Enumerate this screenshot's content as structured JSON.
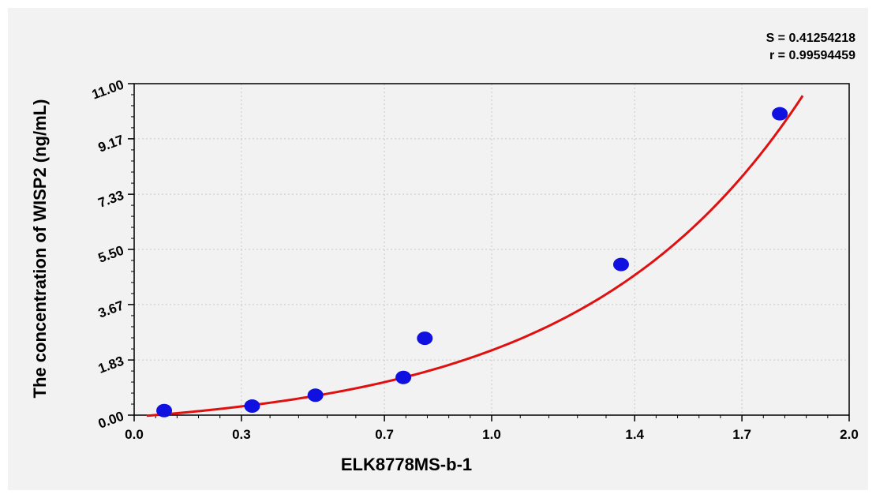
{
  "chart_data": {
    "type": "scatter",
    "title": "",
    "xlabel": "ELK8778MS-b-1",
    "ylabel": "The concentration of WISP2 (ng/mL)",
    "xlim": [
      0.0,
      2.0
    ],
    "ylim": [
      0.0,
      11.0
    ],
    "x_ticks": [
      "0.0",
      "0.3",
      "0.7",
      "1.0",
      "1.4",
      "1.7",
      "2.0"
    ],
    "y_ticks": [
      "0.00",
      "1.83",
      "3.67",
      "5.50",
      "7.33",
      "9.17",
      "11.00"
    ],
    "grid": true,
    "stats": {
      "s_label": "S = 0.41254218",
      "r_label": "r = 0.99594459"
    },
    "points": [
      {
        "x": 0.084,
        "y": 0.15
      },
      {
        "x": 0.33,
        "y": 0.3
      },
      {
        "x": 0.507,
        "y": 0.66
      },
      {
        "x": 0.753,
        "y": 1.25
      },
      {
        "x": 0.813,
        "y": 2.55
      },
      {
        "x": 1.362,
        "y": 5.0
      },
      {
        "x": 1.806,
        "y": 10.0
      }
    ],
    "fit_curve": {
      "type": "exponential",
      "a": 0.5476,
      "b": 1.614,
      "c": -0.6,
      "x_range": [
        0.035,
        1.87
      ]
    },
    "colors": {
      "points": "#1010e0",
      "curve": "#e01010",
      "grid": "#c8c8c8"
    }
  }
}
